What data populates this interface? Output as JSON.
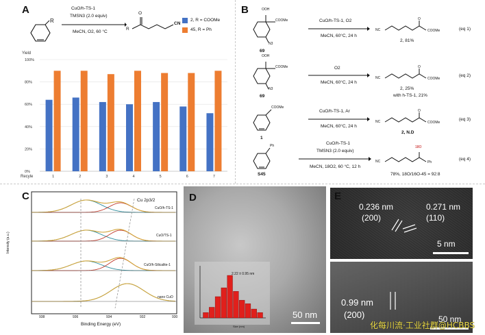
{
  "panel_a": {
    "letter": "A",
    "catalyst": "CuO/h-TS-1",
    "reagent": "TMSN3 (2.0 equiv)",
    "conditions": "MeCN, O2, 60 °C",
    "substituent": "R",
    "product_r": "R",
    "product_cn": "CN",
    "legend": [
      {
        "label": "2, R = COOMe",
        "color": "#4472c4"
      },
      {
        "label": "45, R = Ph",
        "color": "#ed7d31"
      }
    ]
  },
  "chart_data": {
    "type": "bar",
    "ylabel": "Yield",
    "xlabel": "Recyle",
    "categories": [
      "1",
      "2",
      "3",
      "4",
      "5",
      "6",
      "7"
    ],
    "ylim": [
      0,
      100
    ],
    "yticks": [
      "0%",
      "20%",
      "40%",
      "60%",
      "80%",
      "100%"
    ],
    "grid": true,
    "legend_position": "top-right",
    "series": [
      {
        "name": "2, R = COOMe",
        "color": "#4472c4",
        "values": [
          64,
          66,
          62,
          60,
          62,
          58,
          52
        ]
      },
      {
        "name": "45, R = Ph",
        "color": "#ed7d31",
        "values": [
          90,
          90,
          87,
          90,
          88,
          88,
          90
        ]
      }
    ]
  },
  "panel_b": {
    "letter": "B",
    "reactions": [
      {
        "reactant": "69",
        "above": "CuO/h-TS-1, O2",
        "below": "MeCN, 60°C, 24 h",
        "product": "2, 81%",
        "extra": "",
        "eq": "(eq 1)",
        "ooh": "OOH",
        "cooMe": "COOMe",
        "n3": "N3",
        "nc": "NC",
        "ester": "COOMe"
      },
      {
        "reactant": "69",
        "above": "O2",
        "below": "MeCN, 60°C, 24 h",
        "product": "2, 25%",
        "extra": "with h-TS-1, 21%",
        "eq": "(eq 2)",
        "ooh": "OOH",
        "cooMe": "COOMe",
        "n3": "N3",
        "nc": "NC",
        "ester": "COOMe"
      },
      {
        "reactant": "1",
        "above": "CuO/h-TS-1, Ar",
        "below": "MeCN, 60°C, 24 h",
        "product": "2, N.D",
        "extra": "",
        "eq": "(eq 3)",
        "ooh": "",
        "cooMe": "COOMe",
        "n3": "",
        "nc": "NC",
        "ester": "COOMe"
      },
      {
        "reactant": "S45",
        "above": "CuO/h-TS-1",
        "above2": "TMSN3 (2.0 equiv)",
        "below": "MeCN, 18O2, 60 °C, 12 h",
        "product": "78%, 18O/16O-45 = 92:8",
        "extra": "",
        "eq": "(eq 4)",
        "ooh": "",
        "cooMe": "Ph",
        "n3": "",
        "nc": "NC",
        "ester": "Ph",
        "label18": "18O"
      }
    ]
  },
  "panel_c": {
    "letter": "C",
    "title": "Cu 2p3/2",
    "ylabel": "Intensity (a.u.)",
    "xlabel": "Binding Energy (eV)",
    "xticks": [
      "938",
      "936",
      "934",
      "932",
      "930"
    ],
    "samples": [
      "CuO/h-TS-1",
      "CuO/TS-1",
      "CuO/h-Silicalite-1",
      "nano CuO"
    ]
  },
  "panel_d": {
    "letter": "D",
    "size_label": "2.22 ± 0.95 nm",
    "hist_xlabel": "Size (nm)",
    "hist_ylabel": "Frequency",
    "hist_values": [
      3,
      6,
      12,
      17,
      24,
      15,
      10,
      8,
      5,
      3
    ],
    "scalebar": "50 nm"
  },
  "panel_e": {
    "letter": "E",
    "top": {
      "d1": "0.236 nm",
      "h1": "(200)",
      "d2": "0.271 nm",
      "h2": "(110)",
      "scalebar": "5 nm"
    },
    "bottom": {
      "d1": "0.99 nm",
      "h1": "(200)",
      "scalebar": "50 nm"
    }
  },
  "watermark": "化每川流·工业社群@HCBBS"
}
